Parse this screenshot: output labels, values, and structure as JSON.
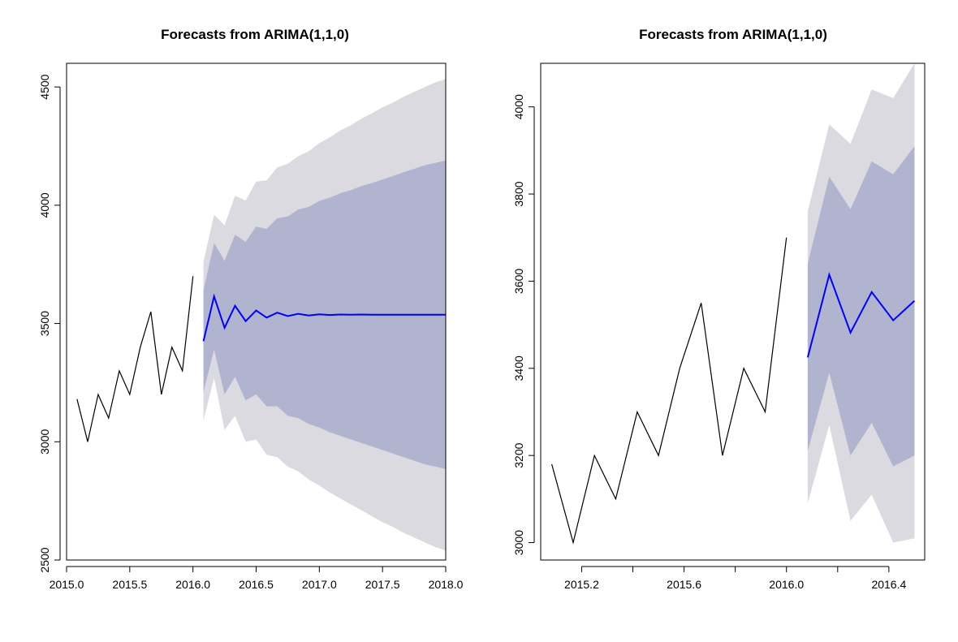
{
  "chart_data": [
    {
      "type": "line",
      "title": "Forecasts from ARIMA(1,1,0)",
      "xlabel": "",
      "ylabel": "",
      "xlim": [
        2015.0,
        2018.0
      ],
      "ylim": [
        2500,
        4600
      ],
      "xticks": [
        "2015.0",
        "2015.5",
        "2016.0",
        "2016.5",
        "2017.0",
        "2017.5",
        "2018.0"
      ],
      "yticks": [
        "2500",
        "3000",
        "3500",
        "4000",
        "4500"
      ],
      "grid": false,
      "colors": {
        "history": "#000000",
        "forecast": "#0000ff",
        "band80": "#b0b4cf",
        "band95": "#dadae0"
      },
      "history": {
        "x": [
          2015.083,
          2015.167,
          2015.25,
          2015.333,
          2015.417,
          2015.5,
          2015.583,
          2015.667,
          2015.75,
          2015.833,
          2015.917,
          2016.0
        ],
        "y": [
          3180,
          3000,
          3200,
          3100,
          3300,
          3200,
          3400,
          3550,
          3200,
          3400,
          3300,
          3700
        ]
      },
      "forecast": {
        "x": [
          2016.083,
          2016.167,
          2016.25,
          2016.333,
          2016.417,
          2016.5,
          2016.583,
          2016.667,
          2016.75,
          2016.833,
          2016.917,
          2017.0,
          2017.083,
          2017.167,
          2017.25,
          2017.333,
          2017.417,
          2017.5,
          2017.583,
          2017.667,
          2017.75,
          2017.833,
          2017.917,
          2018.0
        ],
        "mean": [
          3425,
          3615,
          3482,
          3575,
          3510,
          3555,
          3525,
          3546,
          3531,
          3541,
          3534,
          3539,
          3536,
          3538,
          3537,
          3538,
          3537,
          3537,
          3537,
          3537,
          3537,
          3537,
          3537,
          3537
        ],
        "lo80": [
          3210,
          3390,
          3200,
          3275,
          3175,
          3200,
          3150,
          3150,
          3110,
          3100,
          3075,
          3060,
          3040,
          3025,
          3010,
          2995,
          2980,
          2965,
          2950,
          2935,
          2920,
          2905,
          2895,
          2885
        ],
        "hi80": [
          3640,
          3840,
          3765,
          3875,
          3845,
          3910,
          3900,
          3945,
          3952,
          3982,
          3993,
          4018,
          4032,
          4051,
          4064,
          4081,
          4094,
          4109,
          4124,
          4139,
          4154,
          4169,
          4179,
          4189
        ],
        "lo95": [
          3090,
          3270,
          3050,
          3110,
          3000,
          3010,
          2945,
          2935,
          2895,
          2875,
          2840,
          2815,
          2785,
          2760,
          2735,
          2710,
          2685,
          2660,
          2640,
          2615,
          2595,
          2575,
          2555,
          2540
        ],
        "hi95": [
          3760,
          3960,
          3915,
          4040,
          4020,
          4100,
          4105,
          4160,
          4175,
          4207,
          4228,
          4263,
          4287,
          4316,
          4339,
          4366,
          4389,
          4414,
          4434,
          4459,
          4479,
          4499,
          4519,
          4534
        ]
      }
    },
    {
      "type": "line",
      "title": "Forecasts from ARIMA(1,1,0)",
      "xlabel": "",
      "ylabel": "",
      "xlim": [
        2015.04,
        2016.54
      ],
      "ylim": [
        2960,
        4100
      ],
      "xticks": [
        "2015.2",
        "2015.6",
        "2016.0",
        "2016.4"
      ],
      "yticks": [
        "3000",
        "3200",
        "3400",
        "3600",
        "3800",
        "4000"
      ],
      "grid": false,
      "colors": {
        "history": "#000000",
        "forecast": "#0000ff",
        "band80": "#b0b4cf",
        "band95": "#dadae0"
      },
      "history": {
        "x": [
          2015.083,
          2015.167,
          2015.25,
          2015.333,
          2015.417,
          2015.5,
          2015.583,
          2015.667,
          2015.75,
          2015.833,
          2015.917,
          2016.0
        ],
        "y": [
          3180,
          3000,
          3200,
          3100,
          3300,
          3200,
          3400,
          3550,
          3200,
          3400,
          3300,
          3700
        ]
      },
      "forecast": {
        "x": [
          2016.083,
          2016.167,
          2016.25,
          2016.333,
          2016.417,
          2016.5
        ],
        "mean": [
          3425,
          3615,
          3482,
          3575,
          3510,
          3555
        ],
        "lo80": [
          3210,
          3390,
          3200,
          3275,
          3175,
          3200
        ],
        "hi80": [
          3640,
          3840,
          3765,
          3875,
          3845,
          3910
        ],
        "lo95": [
          3090,
          3270,
          3050,
          3110,
          3000,
          3010
        ],
        "hi95": [
          3760,
          3960,
          3915,
          4040,
          4020,
          4100
        ]
      }
    }
  ]
}
